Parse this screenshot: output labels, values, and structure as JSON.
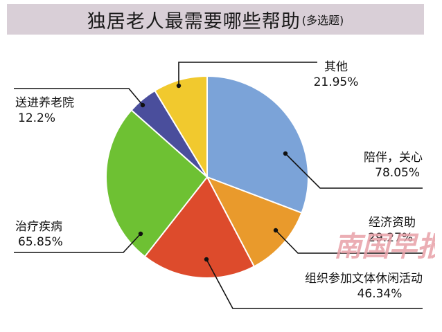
{
  "header": {
    "title": "独居老人最需要哪些帮助",
    "subtitle": "(多选题)",
    "background": "#d9cfd7"
  },
  "watermark": {
    "text": "南国早报",
    "color": "#e8a0a8"
  },
  "chart_data": {
    "type": "pie",
    "title": "独居老人最需要哪些帮助(多选题)",
    "slices": [
      {
        "label": "陪伴，关心",
        "value_label": "78.05%",
        "value": 78.05,
        "color": "#7ba3d8"
      },
      {
        "label": "经济资助",
        "value_label": "29.27%",
        "value": 29.27,
        "color": "#e99a2c"
      },
      {
        "label": "组织参加文体休闲活动",
        "value_label": "46.34%",
        "value": 46.34,
        "color": "#dd4b2c"
      },
      {
        "label": "治疗疾病",
        "value_label": "65.85%",
        "value": 65.85,
        "color": "#6ec133"
      },
      {
        "label": "送进养老院",
        "value_label": "12.2%",
        "value": 12.2,
        "color": "#4a4e9c"
      },
      {
        "label": "其他",
        "value_label": "21.95%",
        "value": 21.95,
        "color": "#f1c92e"
      }
    ],
    "legend": "none",
    "data_labels": "outside-with-leader-lines"
  }
}
